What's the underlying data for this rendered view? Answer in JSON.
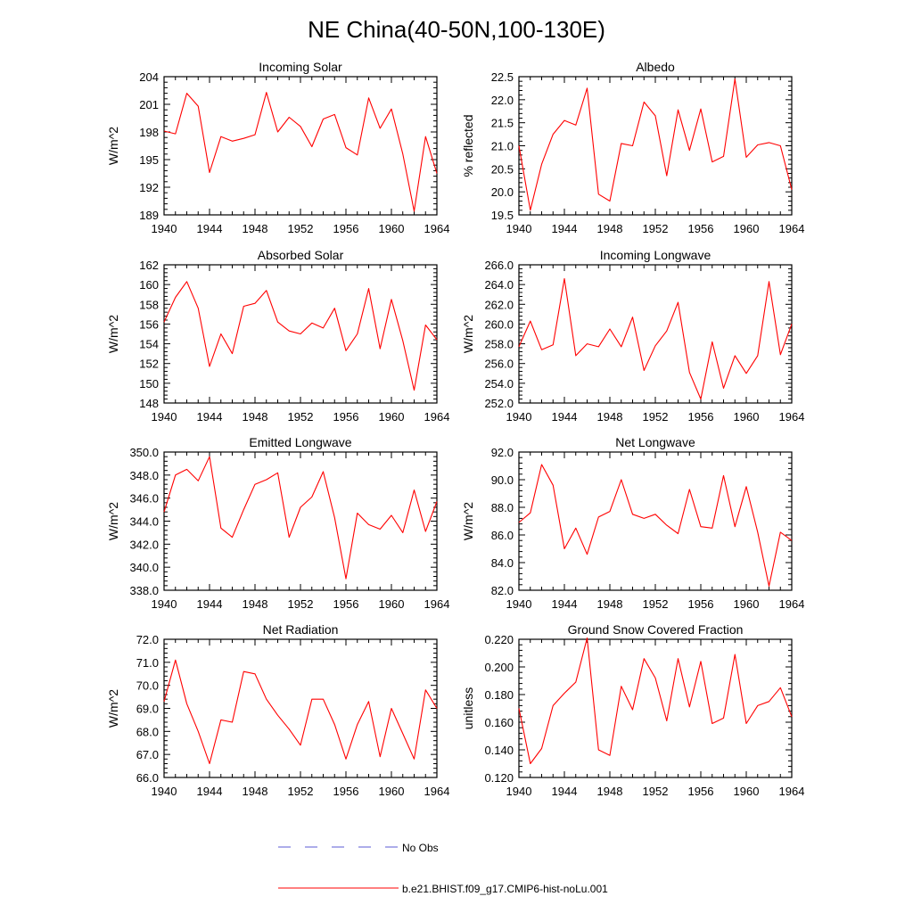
{
  "figure": {
    "title": "NE China(40-50N,100-130E)"
  },
  "legend": {
    "entries": [
      {
        "label": "No Obs",
        "color": "#5b5bd6",
        "dash": true
      },
      {
        "label": "b.e21.BHIST.f09_g17.CMIP6-hist-noLu.001",
        "color": "#ff0000",
        "dash": false
      }
    ]
  },
  "chart_data": [
    {
      "type": "line",
      "title": "Incoming Solar",
      "ylabel": "W/m^2",
      "xlim": [
        1940,
        1964
      ],
      "ylim": [
        189,
        204
      ],
      "xticks": [
        1940,
        1944,
        1948,
        1952,
        1956,
        1960,
        1964
      ],
      "yticks": [
        189,
        192,
        195,
        198,
        201,
        204
      ],
      "ytick_labels": [
        "189",
        "192",
        "195",
        "198",
        "201",
        "204"
      ],
      "x": [
        1940,
        1941,
        1942,
        1943,
        1944,
        1945,
        1946,
        1947,
        1948,
        1949,
        1950,
        1951,
        1952,
        1953,
        1954,
        1955,
        1956,
        1957,
        1958,
        1959,
        1960,
        1961,
        1962,
        1963,
        1964
      ],
      "series": [
        {
          "color": "#ff0000",
          "values": [
            198.1,
            197.8,
            202.2,
            200.8,
            193.6,
            197.5,
            197.0,
            197.3,
            197.7,
            202.3,
            198.0,
            199.6,
            198.6,
            196.4,
            199.4,
            199.9,
            196.3,
            195.5,
            201.7,
            198.4,
            200.5,
            195.6,
            189.4,
            197.5,
            193.5
          ]
        }
      ]
    },
    {
      "type": "line",
      "title": "Albedo",
      "ylabel": "% reflected",
      "xlim": [
        1940,
        1964
      ],
      "ylim": [
        19.5,
        22.5
      ],
      "xticks": [
        1940,
        1944,
        1948,
        1952,
        1956,
        1960,
        1964
      ],
      "yticks": [
        19.5,
        20.0,
        20.5,
        21.0,
        21.5,
        22.0,
        22.5
      ],
      "ytick_labels": [
        "19.5",
        "20.0",
        "20.5",
        "21.0",
        "21.5",
        "22.0",
        "22.5"
      ],
      "x": [
        1940,
        1941,
        1942,
        1943,
        1944,
        1945,
        1946,
        1947,
        1948,
        1949,
        1950,
        1951,
        1952,
        1953,
        1954,
        1955,
        1956,
        1957,
        1958,
        1959,
        1960,
        1961,
        1962,
        1963,
        1964
      ],
      "series": [
        {
          "color": "#ff0000",
          "values": [
            21.0,
            19.6,
            20.6,
            21.25,
            21.55,
            21.45,
            22.25,
            19.95,
            19.8,
            21.05,
            21.0,
            21.95,
            21.65,
            20.35,
            21.78,
            20.9,
            21.8,
            20.65,
            20.77,
            22.45,
            20.75,
            21.02,
            21.07,
            21.0,
            20.05
          ]
        }
      ]
    },
    {
      "type": "line",
      "title": "Absorbed Solar",
      "ylabel": "W/m^2",
      "xlim": [
        1940,
        1964
      ],
      "ylim": [
        148,
        162
      ],
      "xticks": [
        1940,
        1944,
        1948,
        1952,
        1956,
        1960,
        1964
      ],
      "yticks": [
        148,
        150,
        152,
        154,
        156,
        158,
        160,
        162
      ],
      "ytick_labels": [
        "148",
        "150",
        "152",
        "154",
        "156",
        "158",
        "160",
        "162"
      ],
      "x": [
        1940,
        1941,
        1942,
        1943,
        1944,
        1945,
        1946,
        1947,
        1948,
        1949,
        1950,
        1951,
        1952,
        1953,
        1954,
        1955,
        1956,
        1957,
        1958,
        1959,
        1960,
        1961,
        1962,
        1963,
        1964
      ],
      "series": [
        {
          "color": "#ff0000",
          "values": [
            156.2,
            158.7,
            160.3,
            157.6,
            151.7,
            155.0,
            153.0,
            157.8,
            158.1,
            159.4,
            156.2,
            155.3,
            155.0,
            156.1,
            155.6,
            157.6,
            153.3,
            155.0,
            159.6,
            153.5,
            158.5,
            154.3,
            149.3,
            155.9,
            154.4
          ]
        }
      ]
    },
    {
      "type": "line",
      "title": "Incoming Longwave",
      "ylabel": "W/m^2",
      "xlim": [
        1940,
        1964
      ],
      "ylim": [
        252,
        266
      ],
      "xticks": [
        1940,
        1944,
        1948,
        1952,
        1956,
        1960,
        1964
      ],
      "yticks": [
        252,
        254,
        256,
        258,
        260,
        262,
        264,
        266
      ],
      "ytick_labels": [
        "252.0",
        "254.0",
        "256.0",
        "258.0",
        "260.0",
        "262.0",
        "264.0",
        "266.0"
      ],
      "x": [
        1940,
        1941,
        1942,
        1943,
        1944,
        1945,
        1946,
        1947,
        1948,
        1949,
        1950,
        1951,
        1952,
        1953,
        1954,
        1955,
        1956,
        1957,
        1958,
        1959,
        1960,
        1961,
        1962,
        1963,
        1964
      ],
      "series": [
        {
          "color": "#ff0000",
          "values": [
            257.7,
            260.3,
            257.4,
            257.9,
            264.6,
            256.8,
            258.0,
            257.7,
            259.5,
            257.7,
            260.7,
            255.3,
            257.8,
            259.3,
            262.2,
            255.1,
            252.4,
            258.2,
            253.5,
            256.8,
            255.0,
            256.8,
            264.3,
            256.9,
            260.0
          ]
        }
      ]
    },
    {
      "type": "line",
      "title": "Emitted Longwave",
      "ylabel": "W/m^2",
      "xlim": [
        1940,
        1964
      ],
      "ylim": [
        338,
        350
      ],
      "xticks": [
        1940,
        1944,
        1948,
        1952,
        1956,
        1960,
        1964
      ],
      "yticks": [
        338,
        340,
        342,
        344,
        346,
        348,
        350
      ],
      "ytick_labels": [
        "338.0",
        "340.0",
        "342.0",
        "344.0",
        "346.0",
        "348.0",
        "350.0"
      ],
      "x": [
        1940,
        1941,
        1942,
        1943,
        1944,
        1945,
        1946,
        1947,
        1948,
        1949,
        1950,
        1951,
        1952,
        1953,
        1954,
        1955,
        1956,
        1957,
        1958,
        1959,
        1960,
        1961,
        1962,
        1963,
        1964
      ],
      "series": [
        {
          "color": "#ff0000",
          "values": [
            344.8,
            348.0,
            348.5,
            347.5,
            349.6,
            343.4,
            342.6,
            345.0,
            347.2,
            347.6,
            348.2,
            342.6,
            345.2,
            346.1,
            348.3,
            344.3,
            339.0,
            344.7,
            343.7,
            343.3,
            344.5,
            343.0,
            346.7,
            343.1,
            345.7
          ]
        }
      ]
    },
    {
      "type": "line",
      "title": "Net Longwave",
      "ylabel": "W/m^2",
      "xlim": [
        1940,
        1964
      ],
      "ylim": [
        82,
        92
      ],
      "xticks": [
        1940,
        1944,
        1948,
        1952,
        1956,
        1960,
        1964
      ],
      "yticks": [
        82,
        84,
        86,
        88,
        90,
        92
      ],
      "ytick_labels": [
        "82.0",
        "84.0",
        "86.0",
        "88.0",
        "90.0",
        "92.0"
      ],
      "x": [
        1940,
        1941,
        1942,
        1943,
        1944,
        1945,
        1946,
        1947,
        1948,
        1949,
        1950,
        1951,
        1952,
        1953,
        1954,
        1955,
        1956,
        1957,
        1958,
        1959,
        1960,
        1961,
        1962,
        1963,
        1964
      ],
      "series": [
        {
          "color": "#ff0000",
          "values": [
            86.9,
            87.6,
            91.1,
            89.6,
            85.0,
            86.5,
            84.6,
            87.3,
            87.7,
            90.0,
            87.5,
            87.2,
            87.5,
            86.7,
            86.1,
            89.3,
            86.6,
            86.5,
            90.3,
            86.6,
            89.5,
            86.2,
            82.3,
            86.2,
            85.6
          ]
        }
      ]
    },
    {
      "type": "line",
      "title": "Net Radiation",
      "ylabel": "W/m^2",
      "xlim": [
        1940,
        1964
      ],
      "ylim": [
        66,
        72
      ],
      "xticks": [
        1940,
        1944,
        1948,
        1952,
        1956,
        1960,
        1964
      ],
      "yticks": [
        66,
        67,
        68,
        69,
        70,
        71,
        72
      ],
      "ytick_labels": [
        "66.0",
        "67.0",
        "68.0",
        "69.0",
        "70.0",
        "71.0",
        "72.0"
      ],
      "x": [
        1940,
        1941,
        1942,
        1943,
        1944,
        1945,
        1946,
        1947,
        1948,
        1949,
        1950,
        1951,
        1952,
        1953,
        1954,
        1955,
        1956,
        1957,
        1958,
        1959,
        1960,
        1961,
        1962,
        1963,
        1964
      ],
      "series": [
        {
          "color": "#ff0000",
          "values": [
            69.3,
            71.1,
            69.2,
            68.0,
            66.6,
            68.5,
            68.4,
            70.6,
            70.5,
            69.4,
            68.7,
            68.1,
            67.4,
            69.4,
            69.4,
            68.3,
            66.8,
            68.3,
            69.3,
            66.9,
            69.0,
            67.9,
            66.8,
            69.8,
            69.0
          ]
        }
      ]
    },
    {
      "type": "line",
      "title": "Ground Snow Covered Fraction",
      "ylabel": "unitless",
      "xlim": [
        1940,
        1964
      ],
      "ylim": [
        0.12,
        0.22
      ],
      "xticks": [
        1940,
        1944,
        1948,
        1952,
        1956,
        1960,
        1964
      ],
      "yticks": [
        0.12,
        0.14,
        0.16,
        0.18,
        0.2,
        0.22
      ],
      "ytick_labels": [
        "0.120",
        "0.140",
        "0.160",
        "0.180",
        "0.200",
        "0.220"
      ],
      "x": [
        1940,
        1941,
        1942,
        1943,
        1944,
        1945,
        1946,
        1947,
        1948,
        1949,
        1950,
        1951,
        1952,
        1953,
        1954,
        1955,
        1956,
        1957,
        1958,
        1959,
        1960,
        1961,
        1962,
        1963,
        1964
      ],
      "series": [
        {
          "color": "#ff0000",
          "values": [
            0.17,
            0.13,
            0.141,
            0.172,
            0.181,
            0.189,
            0.221,
            0.14,
            0.136,
            0.186,
            0.169,
            0.206,
            0.192,
            0.161,
            0.206,
            0.171,
            0.204,
            0.159,
            0.163,
            0.209,
            0.159,
            0.172,
            0.175,
            0.185,
            0.164
          ]
        }
      ]
    }
  ]
}
